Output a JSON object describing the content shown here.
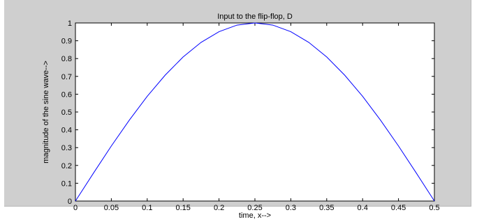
{
  "chart_data": {
    "type": "line",
    "title": "Input to the flip-flop, D",
    "xlabel": "time, x-->",
    "ylabel": "magnitude of the sine wave-->",
    "xlim": [
      0,
      0.5
    ],
    "ylim": [
      0,
      1
    ],
    "x_ticks": [
      0,
      0.05,
      0.1,
      0.15,
      0.2,
      0.25,
      0.3,
      0.35,
      0.4,
      0.45,
      0.5
    ],
    "x_tick_labels": [
      "0",
      "0.05",
      "0.1",
      "0.15",
      "0.2",
      "0.25",
      "0.3",
      "0.35",
      "0.4",
      "0.45",
      "0.5"
    ],
    "y_ticks": [
      0,
      0.1,
      0.2,
      0.3,
      0.4,
      0.5,
      0.6,
      0.7,
      0.8,
      0.9,
      1
    ],
    "y_tick_labels": [
      "0",
      "0.1",
      "0.2",
      "0.3",
      "0.4",
      "0.5",
      "0.6",
      "0.7",
      "0.8",
      "0.9",
      "1"
    ],
    "grid": false,
    "series": [
      {
        "color": "#0000ff",
        "x": [
          0,
          0.025,
          0.05,
          0.075,
          0.1,
          0.125,
          0.15,
          0.175,
          0.2,
          0.225,
          0.25,
          0.275,
          0.3,
          0.325,
          0.35,
          0.375,
          0.4,
          0.425,
          0.45,
          0.475,
          0.5
        ],
        "y": [
          0,
          0.156,
          0.309,
          0.454,
          0.588,
          0.707,
          0.809,
          0.891,
          0.951,
          0.988,
          1,
          0.988,
          0.951,
          0.891,
          0.809,
          0.707,
          0.588,
          0.454,
          0.309,
          0.156,
          0
        ]
      }
    ]
  }
}
